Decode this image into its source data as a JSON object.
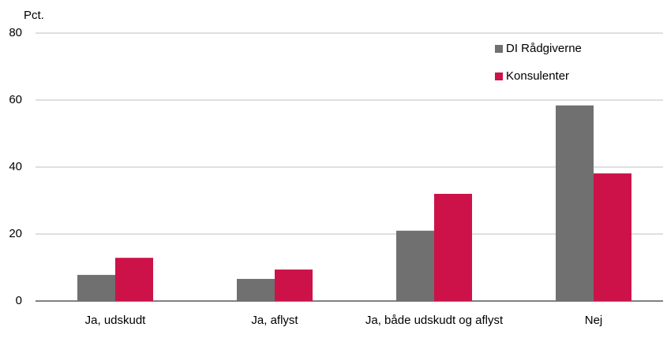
{
  "chart_data": {
    "type": "bar",
    "ylabel": "Pct.",
    "categories": [
      "Ja, udskudt",
      "Ja, aflyst",
      "Ja, både udskudt og aflyst",
      "Nej"
    ],
    "series": [
      {
        "name": "DI Rådgiverne",
        "color": "#707070",
        "values": [
          7.8,
          6.6,
          21,
          58.4
        ]
      },
      {
        "name": "Konsulenter",
        "color": "#cc1249",
        "values": [
          12.9,
          9.4,
          32,
          38.1
        ]
      }
    ],
    "ylim": [
      0,
      80
    ],
    "yticks": [
      0,
      20,
      40,
      60,
      80
    ],
    "grid": true,
    "legend": "upper right"
  }
}
